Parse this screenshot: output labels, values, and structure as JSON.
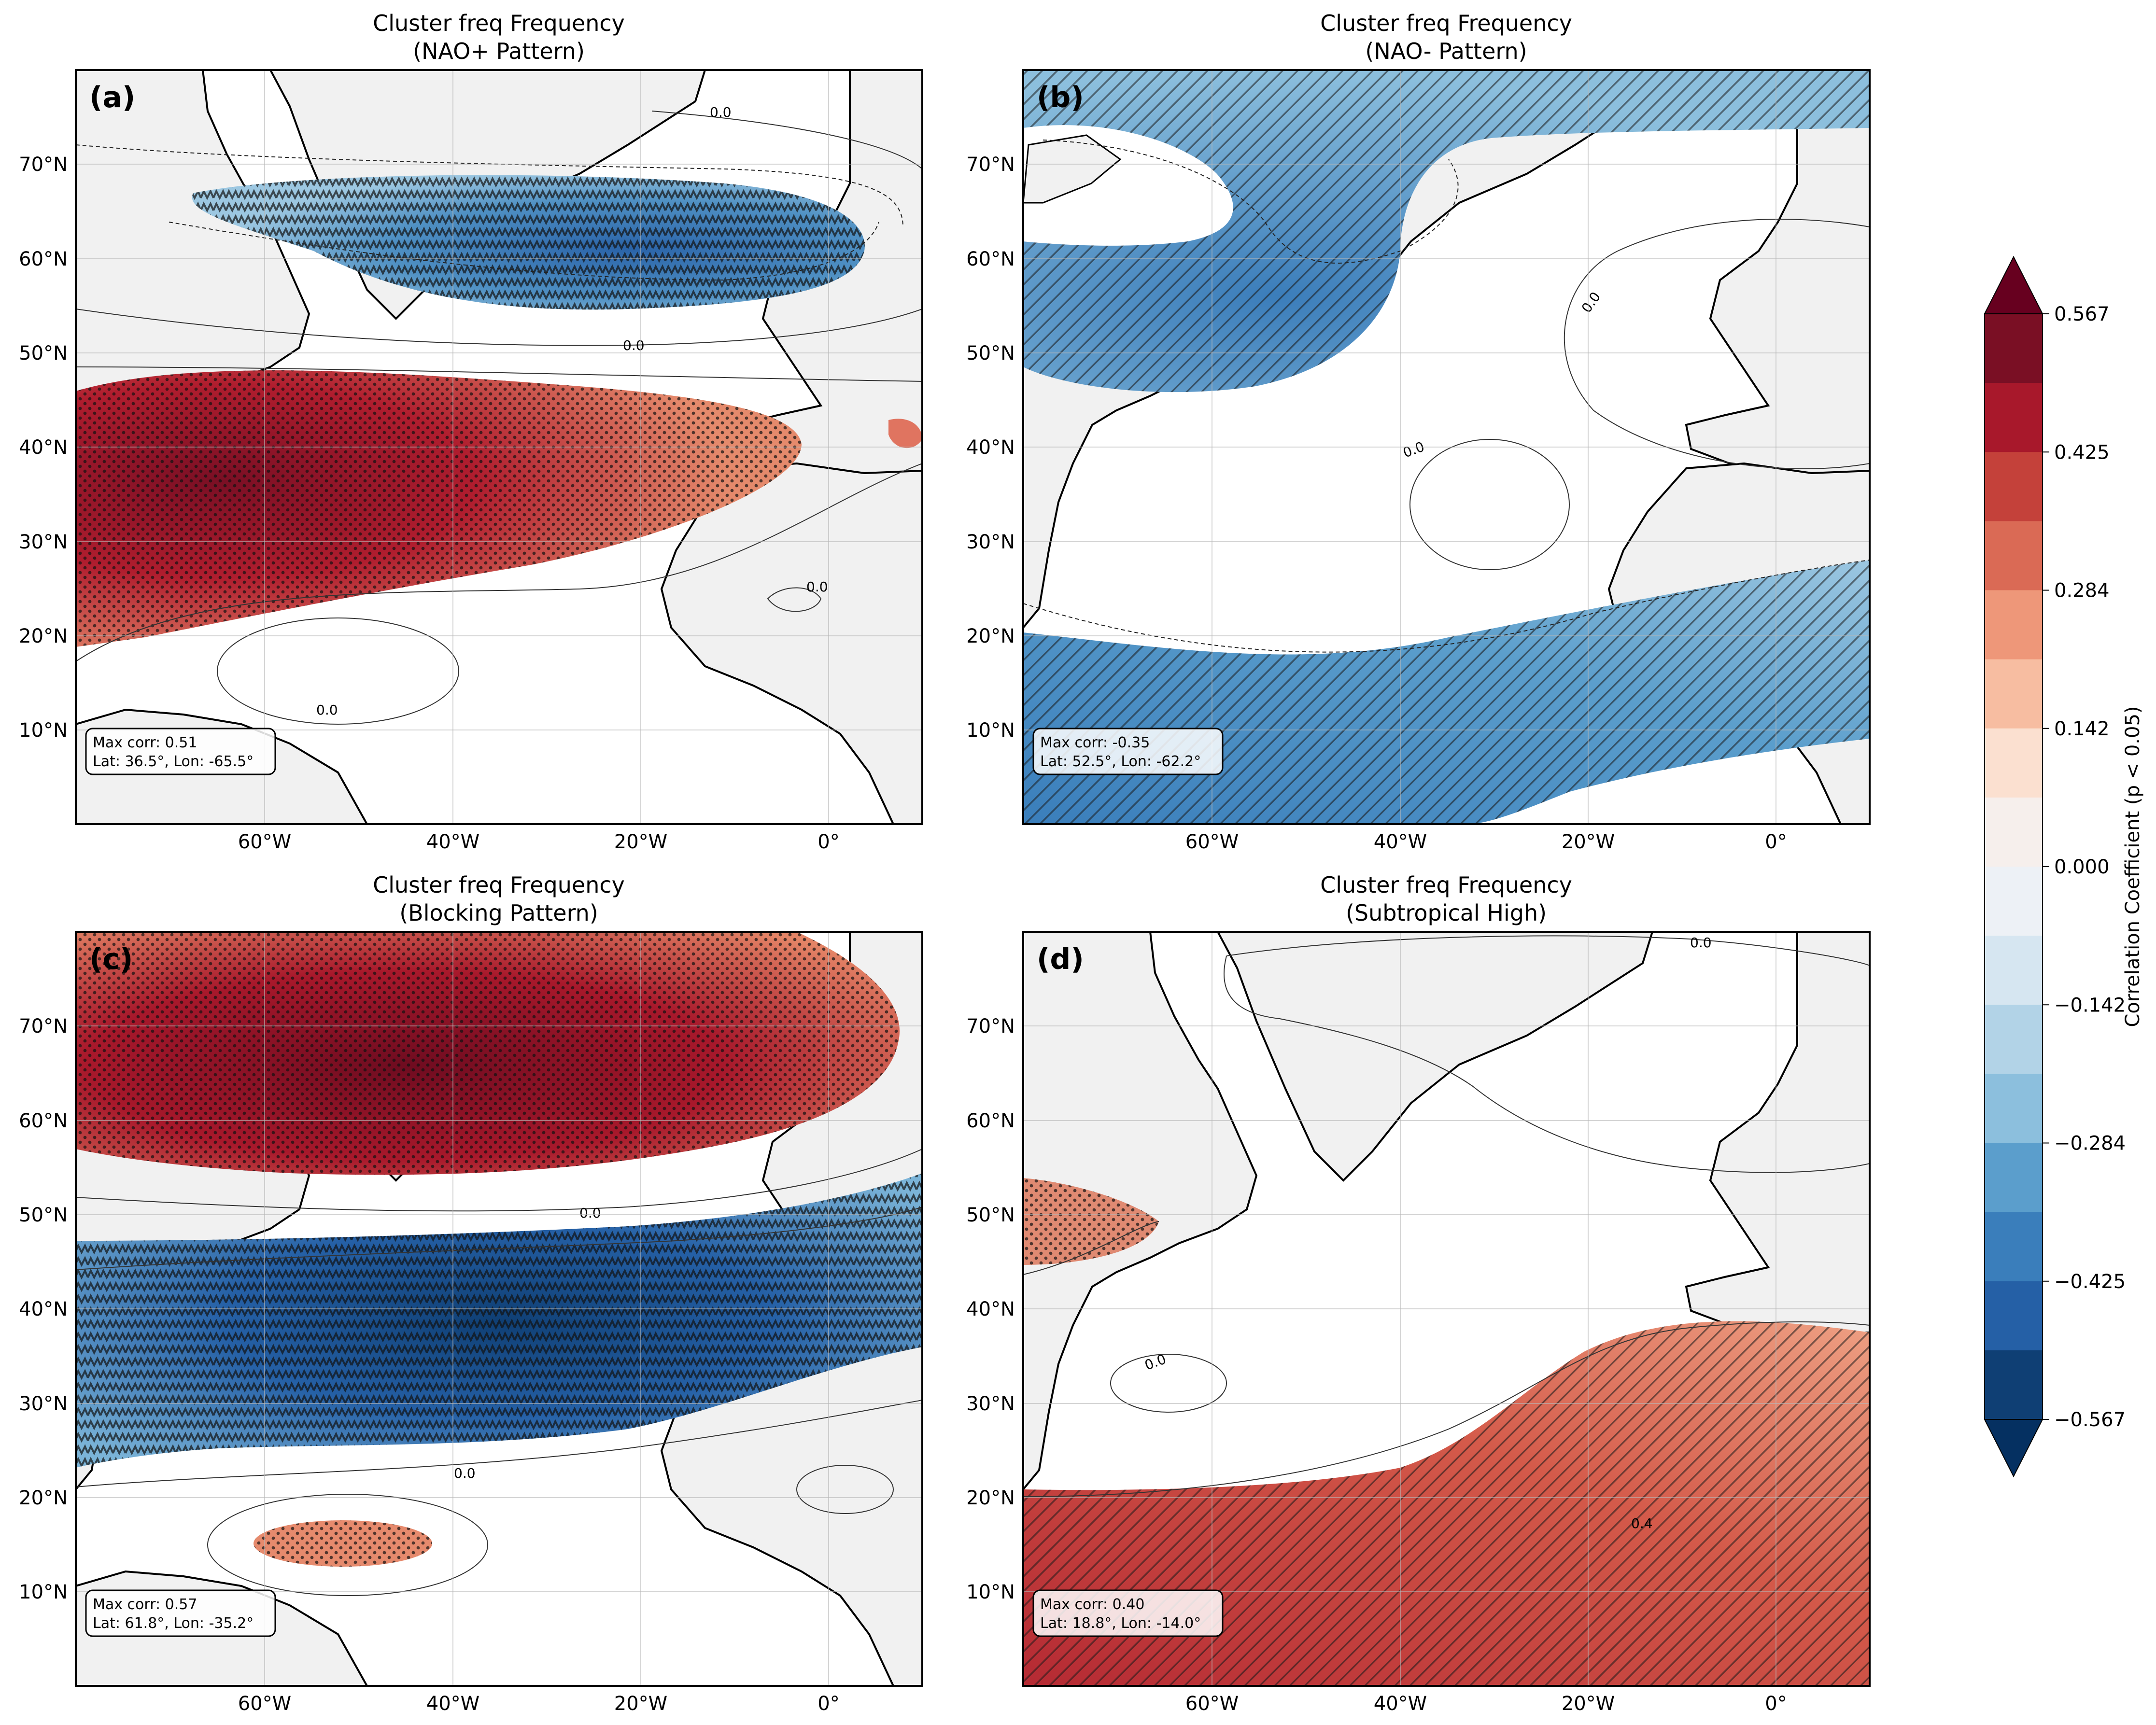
{
  "colorbar": {
    "label": "Correlation Coefficient (p < 0.05)",
    "ticks": [
      "0.567",
      "0.425",
      "0.284",
      "0.142",
      "0.000",
      "−0.142",
      "−0.284",
      "−0.425",
      "−0.567"
    ],
    "colors_top_to_bottom": [
      "#7a0f24",
      "#a8182b",
      "#c4413a",
      "#da6a55",
      "#ee9779",
      "#f7bda1",
      "#fbe0d0",
      "#f6efec",
      "#edf1f6",
      "#d6e6f1",
      "#b2d3e7",
      "#8cbfdd",
      "#5b9ecc",
      "#3a7ebb",
      "#2560a6",
      "#0f3f74"
    ],
    "arrow_top_color": "#67001f",
    "arrow_bottom_color": "#053061"
  },
  "axes": {
    "lat_labels": [
      "10°N",
      "20°N",
      "30°N",
      "40°N",
      "50°N",
      "60°N",
      "70°N"
    ],
    "lon_labels": [
      "60°W",
      "40°W",
      "20°W",
      "0°"
    ]
  },
  "panels": [
    {
      "tag": "(a)",
      "title_line1": "Cluster freq Frequency",
      "title_line2": "(NAO+ Pattern)",
      "info_line1": "Max corr: 0.51",
      "info_line2": "Lat: 36.5°, Lon: -65.5°",
      "contour_labels": [
        "0.0",
        "0.0",
        "0.0",
        "0.0"
      ],
      "features": [
        {
          "sign": "negative",
          "peak": -0.42
        },
        {
          "sign": "positive",
          "peak": 0.51
        }
      ]
    },
    {
      "tag": "(b)",
      "title_line1": "Cluster freq Frequency",
      "title_line2": "(NAO- Pattern)",
      "info_line1": "Max corr: -0.35",
      "info_line2": "Lat: 52.5°, Lon: -62.2°",
      "contour_labels": [
        "0.0",
        "0.0"
      ],
      "features": [
        {
          "sign": "negative",
          "peak": -0.35
        },
        {
          "sign": "negative",
          "peak": -0.3
        }
      ]
    },
    {
      "tag": "(c)",
      "title_line1": "Cluster freq Frequency",
      "title_line2": "(Blocking Pattern)",
      "info_line1": "Max corr: 0.57",
      "info_line2": "Lat: 61.8°, Lon: -35.2°",
      "contour_labels": [
        "0.0",
        "0.0"
      ],
      "features": [
        {
          "sign": "positive",
          "peak": 0.57
        },
        {
          "sign": "negative",
          "peak": -0.55
        },
        {
          "sign": "positive",
          "peak": 0.28
        }
      ]
    },
    {
      "tag": "(d)",
      "title_line1": "Cluster freq Frequency",
      "title_line2": "(Subtropical High)",
      "info_line1": "Max corr: 0.40",
      "info_line2": "Lat: 18.8°, Lon: -14.0°",
      "contour_labels": [
        "0.0",
        "0.0",
        "0.4"
      ],
      "features": [
        {
          "sign": "positive",
          "peak": 0.4
        },
        {
          "sign": "positive",
          "peak": 0.25
        }
      ]
    }
  ]
}
